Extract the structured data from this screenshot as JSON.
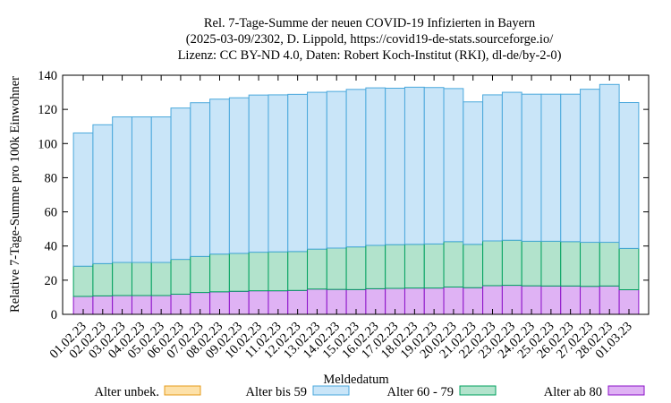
{
  "chart_data": {
    "type": "bar",
    "stacked": true,
    "title_lines": [
      "Rel. 7-Tage-Summe der neuen COVID-19 Infizierten in Bayern",
      "(2025-03-09/2302, D. Lippold, https://covid19-de-stats.sourceforge.io/",
      "Lizenz: CC BY-ND 4.0, Daten: Robert Koch-Institut (RKI), dl-de/by-2-0)"
    ],
    "xlabel": "Meldedatum",
    "ylabel": "Relative 7-Tage-Summe pro 100k Einwohner",
    "ylim": [
      0,
      140
    ],
    "yticks": [
      0,
      20,
      40,
      60,
      80,
      100,
      120,
      140
    ],
    "categories": [
      "01.02.23",
      "02.02.23",
      "03.02.23",
      "04.02.23",
      "05.02.23",
      "06.02.23",
      "07.02.23",
      "08.02.23",
      "09.02.23",
      "10.02.23",
      "11.02.23",
      "12.02.23",
      "13.02.23",
      "14.02.23",
      "15.02.23",
      "16.02.23",
      "17.02.23",
      "18.02.23",
      "19.02.23",
      "20.02.23",
      "21.02.23",
      "22.02.23",
      "23.02.23",
      "24.02.23",
      "25.02.23",
      "26.02.23",
      "27.02.23",
      "28.02.23",
      "01.03.23"
    ],
    "series": [
      {
        "name": "Alter ab 80",
        "fill": "#dfb2f4",
        "stroke": "#8b10c8",
        "values": [
          10.5,
          10.8,
          11,
          11,
          11,
          11.8,
          12.8,
          13.2,
          13.5,
          13.8,
          13.8,
          14,
          14.8,
          14.6,
          14.5,
          15,
          15.2,
          15.4,
          15.4,
          16,
          15.6,
          16.8,
          17,
          16.7,
          16.6,
          16.6,
          16.4,
          16.6,
          14.4
        ]
      },
      {
        "name": "Alter 60 - 79",
        "fill": "#b2e3cc",
        "stroke": "#00a05e",
        "values": [
          17.7,
          18.9,
          19.4,
          19.4,
          19.4,
          20.4,
          21.1,
          22.1,
          22.2,
          22.6,
          22.8,
          22.8,
          23.4,
          24.2,
          25,
          25.4,
          25.6,
          25.6,
          25.8,
          26.6,
          25.4,
          26.2,
          26.4,
          26.1,
          26.2,
          26,
          25.8,
          25.6,
          24.2
        ]
      },
      {
        "name": "Alter bis 59",
        "fill": "#c9e5f8",
        "stroke": "#4aa8dc",
        "values": [
          78,
          81.3,
          85.2,
          85.2,
          85.2,
          88.6,
          90,
          90.7,
          91.1,
          92,
          91.9,
          92,
          91.8,
          91.7,
          92.2,
          92.2,
          91.6,
          92,
          91.6,
          89.6,
          83.4,
          85.5,
          86.6,
          86.1,
          86.1,
          86.3,
          89.6,
          92.4,
          85.4
        ]
      },
      {
        "name": "Alter unbek.",
        "fill": "#fde1a9",
        "stroke": "#e59b1a",
        "values": [
          0,
          0,
          0,
          0,
          0,
          0,
          0,
          0,
          0,
          0,
          0,
          0,
          0,
          0,
          0,
          0,
          0,
          0,
          0,
          0,
          0,
          0,
          0,
          0,
          0,
          0,
          0,
          0,
          0
        ]
      }
    ],
    "legend": [
      {
        "name": "Alter unbek.",
        "fill": "#fde1a9",
        "stroke": "#e59b1a"
      },
      {
        "name": "Alter bis 59",
        "fill": "#c9e5f8",
        "stroke": "#4aa8dc"
      },
      {
        "name": "Alter 60 - 79",
        "fill": "#b2e3cc",
        "stroke": "#00a05e"
      },
      {
        "name": "Alter ab 80",
        "fill": "#dfb2f4",
        "stroke": "#8b10c8"
      }
    ],
    "legend_position": "bottom",
    "grid": false
  }
}
